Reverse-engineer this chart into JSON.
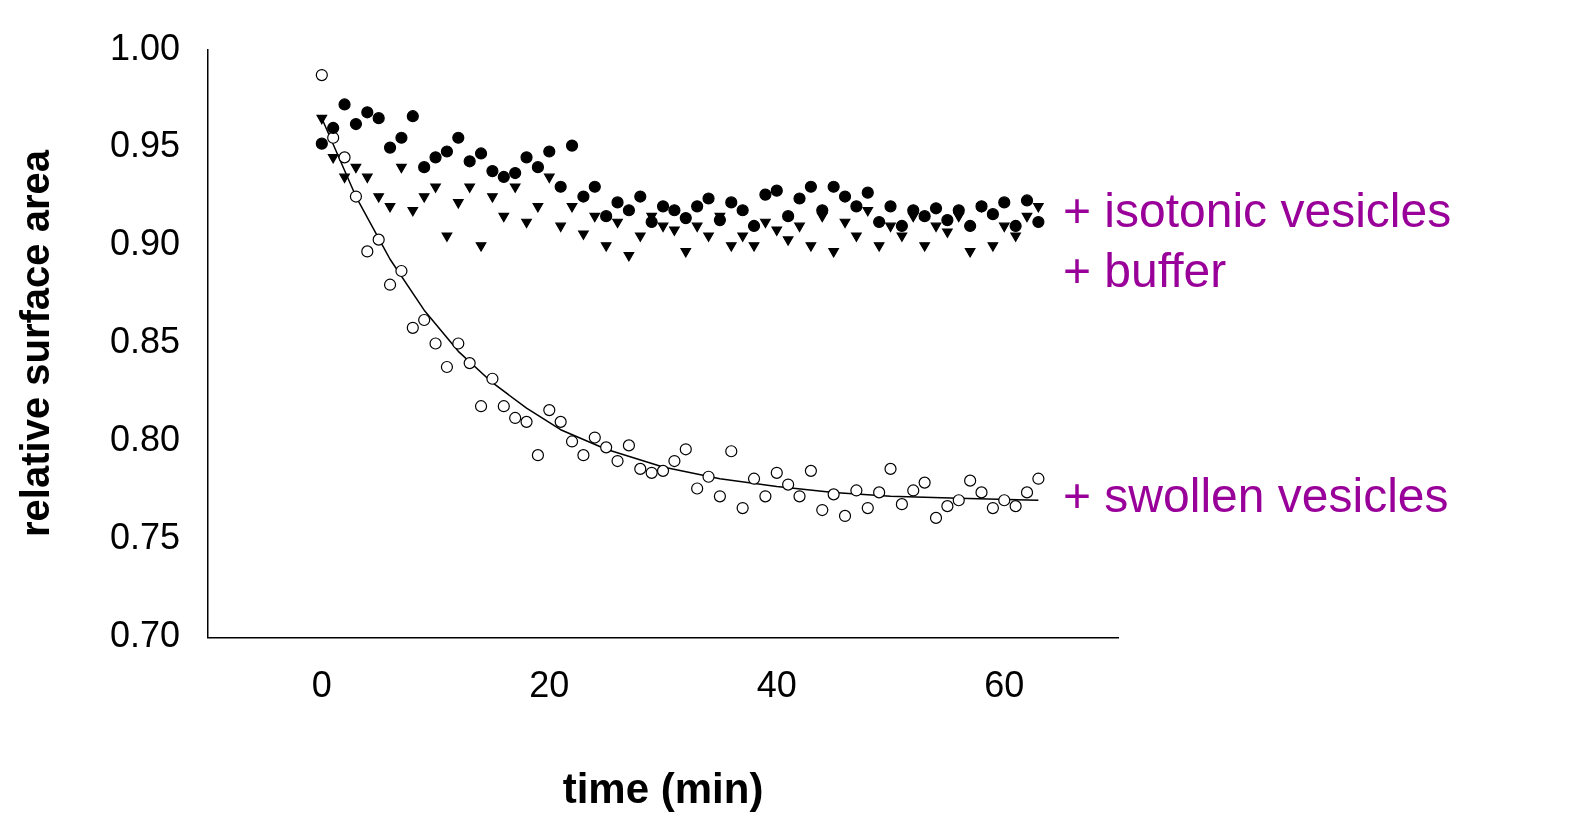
{
  "chart_data": {
    "type": "scatter",
    "xlabel": "time (min)",
    "ylabel": "relative surface area",
    "x": [
      0,
      1,
      2,
      3,
      4,
      5,
      6,
      7,
      8,
      9,
      10,
      11,
      12,
      13,
      14,
      15,
      16,
      17,
      18,
      19,
      20,
      21,
      22,
      23,
      24,
      25,
      26,
      27,
      28,
      29,
      30,
      31,
      32,
      33,
      34,
      35,
      36,
      37,
      38,
      39,
      40,
      41,
      42,
      43,
      44,
      45,
      46,
      47,
      48,
      49,
      50,
      51,
      52,
      53,
      54,
      55,
      56,
      57,
      58,
      59,
      60,
      61,
      62,
      63
    ],
    "xlim": [
      -10,
      70
    ],
    "xticks": [
      0,
      20,
      40,
      60
    ],
    "ylim": [
      0.7,
      1.0
    ],
    "yticks": [
      {
        "value": 0.7,
        "label": "0.70"
      },
      {
        "value": 0.75,
        "label": "0.75"
      },
      {
        "value": 0.8,
        "label": "0.80"
      },
      {
        "value": 0.85,
        "label": "0.85"
      },
      {
        "value": 0.9,
        "label": "0.90"
      },
      {
        "value": 0.95,
        "label": "0.95"
      },
      {
        "value": 1.0,
        "label": "1.00"
      }
    ],
    "grid": false,
    "series": [
      {
        "name": "+ isotonic vesicles",
        "color": "#000000",
        "marker": "circle",
        "values": [
          0.952,
          0.96,
          0.972,
          0.962,
          0.968,
          0.965,
          0.95,
          0.955,
          0.966,
          0.94,
          0.945,
          0.948,
          0.955,
          0.943,
          0.947,
          0.938,
          0.935,
          0.937,
          0.945,
          0.94,
          0.948,
          0.93,
          0.951,
          0.925,
          0.93,
          0.915,
          0.922,
          0.918,
          0.925,
          0.912,
          0.92,
          0.918,
          0.914,
          0.92,
          0.924,
          0.913,
          0.922,
          0.918,
          0.91,
          0.926,
          0.928,
          0.915,
          0.924,
          0.93,
          0.918,
          0.93,
          0.925,
          0.92,
          0.927,
          0.912,
          0.92,
          0.91,
          0.918,
          0.915,
          0.919,
          0.913,
          0.918,
          0.91,
          0.92,
          0.916,
          0.922,
          0.91,
          0.923,
          0.912
        ]
      },
      {
        "name": "+ buffer",
        "color": "#000000",
        "marker": "triangle",
        "values": [
          0.965,
          0.945,
          0.935,
          0.94,
          0.935,
          0.925,
          0.92,
          0.94,
          0.918,
          0.925,
          0.93,
          0.905,
          0.922,
          0.93,
          0.9,
          0.925,
          0.915,
          0.93,
          0.912,
          0.92,
          0.935,
          0.91,
          0.92,
          0.906,
          0.915,
          0.9,
          0.912,
          0.895,
          0.905,
          0.915,
          0.91,
          0.908,
          0.897,
          0.91,
          0.905,
          0.915,
          0.9,
          0.905,
          0.9,
          0.912,
          0.908,
          0.903,
          0.91,
          0.9,
          0.915,
          0.897,
          0.912,
          0.905,
          0.918,
          0.9,
          0.91,
          0.905,
          0.915,
          0.9,
          0.91,
          0.907,
          0.915,
          0.897,
          0.92,
          0.9,
          0.91,
          0.905,
          0.915,
          0.92
        ]
      },
      {
        "name": "+ swollen vesicles",
        "color": "#ffffff",
        "marker": "circle",
        "values": [
          0.987,
          0.955,
          0.945,
          0.925,
          0.897,
          0.903,
          0.88,
          0.887,
          0.858,
          0.862,
          0.85,
          0.838,
          0.85,
          0.84,
          0.818,
          0.832,
          0.818,
          0.812,
          0.81,
          0.793,
          0.816,
          0.81,
          0.8,
          0.793,
          0.802,
          0.797,
          0.79,
          0.798,
          0.786,
          0.784,
          0.785,
          0.79,
          0.796,
          0.776,
          0.782,
          0.772,
          0.795,
          0.766,
          0.781,
          0.772,
          0.784,
          0.778,
          0.772,
          0.785,
          0.765,
          0.773,
          0.762,
          0.775,
          0.766,
          0.774,
          0.786,
          0.768,
          0.775,
          0.779,
          0.761,
          0.767,
          0.77,
          0.78,
          0.774,
          0.766,
          0.77,
          0.767,
          0.774,
          0.781
        ]
      },
      {
        "type": "line",
        "color": "#000000",
        "marker": "none",
        "x": [
          0,
          3,
          6,
          9,
          12,
          15,
          18,
          21,
          25,
          30,
          35,
          40,
          45,
          50,
          56,
          63
        ],
        "values": [
          0.965,
          0.925,
          0.893,
          0.867,
          0.846,
          0.83,
          0.817,
          0.806,
          0.796,
          0.787,
          0.781,
          0.777,
          0.774,
          0.772,
          0.771,
          0.77
        ]
      }
    ]
  }
}
